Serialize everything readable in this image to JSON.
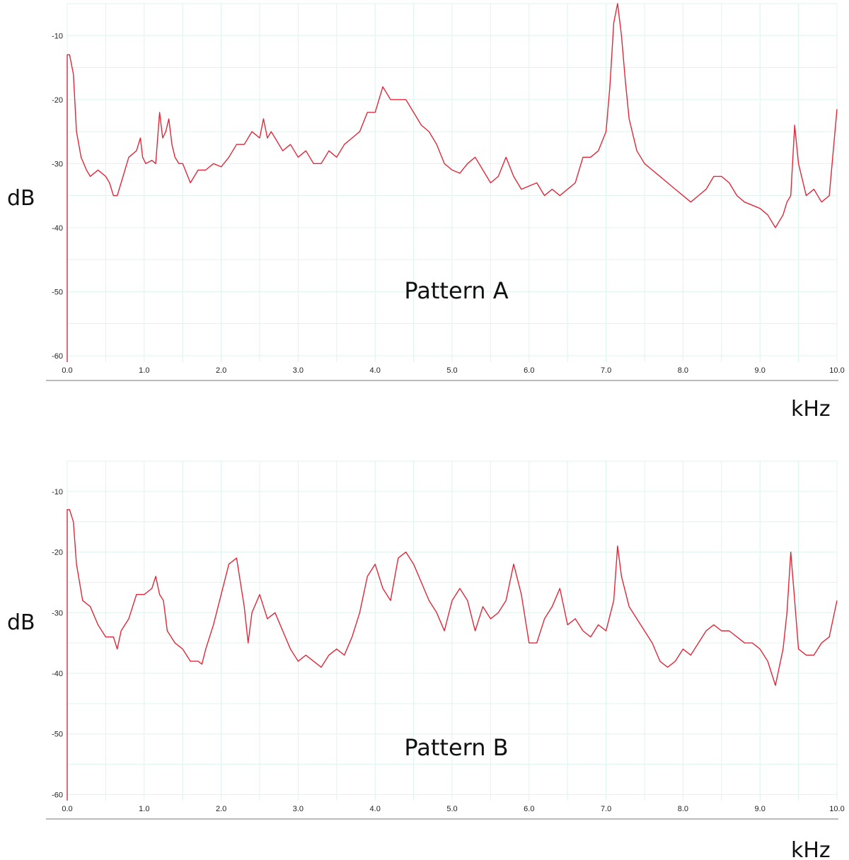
{
  "colors": {
    "line": "#e0283a",
    "grid": "#dff3ee",
    "tick_text": "#222222",
    "axis_line": "#bbbbbb"
  },
  "chart_data": [
    {
      "type": "line",
      "title": "Pattern A",
      "xlabel": "kHz",
      "ylabel": "dB",
      "xlim": [
        0,
        10
      ],
      "ylim": [
        -61,
        -5
      ],
      "grid": true,
      "x_ticks": [
        "0.0",
        "1.0",
        "2.0",
        "3.0",
        "4.0",
        "5.0",
        "6.0",
        "7.0",
        "8.0",
        "9.0",
        "10.0"
      ],
      "y_ticks": [
        "-10",
        "-20",
        "-30",
        "-40",
        "-50",
        "-60"
      ],
      "series": [
        {
          "name": "Pattern A",
          "x": [
            0.0,
            0.0,
            0.03,
            0.08,
            0.12,
            0.18,
            0.25,
            0.3,
            0.4,
            0.45,
            0.5,
            0.55,
            0.6,
            0.65,
            0.7,
            0.8,
            0.9,
            0.95,
            0.98,
            1.02,
            1.1,
            1.15,
            1.2,
            1.24,
            1.28,
            1.32,
            1.36,
            1.4,
            1.45,
            1.5,
            1.6,
            1.7,
            1.8,
            1.9,
            2.0,
            2.1,
            2.2,
            2.3,
            2.4,
            2.5,
            2.55,
            2.6,
            2.65,
            2.7,
            2.8,
            2.9,
            3.0,
            3.1,
            3.2,
            3.3,
            3.4,
            3.5,
            3.6,
            3.7,
            3.8,
            3.9,
            4.0,
            4.1,
            4.2,
            4.3,
            4.4,
            4.5,
            4.6,
            4.7,
            4.8,
            4.9,
            5.0,
            5.1,
            5.2,
            5.3,
            5.4,
            5.5,
            5.6,
            5.7,
            5.8,
            5.9,
            6.0,
            6.1,
            6.2,
            6.3,
            6.4,
            6.5,
            6.6,
            6.7,
            6.8,
            6.9,
            7.0,
            7.05,
            7.1,
            7.15,
            7.2,
            7.25,
            7.3,
            7.4,
            7.5,
            7.6,
            7.7,
            7.8,
            7.9,
            8.0,
            8.1,
            8.2,
            8.3,
            8.4,
            8.5,
            8.6,
            8.7,
            8.8,
            8.9,
            9.0,
            9.1,
            9.15,
            9.2,
            9.3,
            9.35,
            9.4,
            9.45,
            9.5,
            9.6,
            9.7,
            9.8,
            9.9,
            10.0
          ],
          "values": [
            -61,
            -13,
            -13,
            -16,
            -25,
            -29,
            -31,
            -32,
            -31,
            -31.5,
            -32,
            -33,
            -35,
            -35,
            -33,
            -29,
            -28,
            -26,
            -29,
            -30,
            -29.5,
            -30,
            -22,
            -26,
            -25,
            -23,
            -27,
            -29,
            -30,
            -30,
            -33,
            -31,
            -31,
            -30,
            -30.5,
            -29,
            -27,
            -27,
            -25,
            -26,
            -23,
            -26,
            -25,
            -26,
            -28,
            -27,
            -29,
            -28,
            -30,
            -30,
            -28,
            -29,
            -27,
            -26,
            -25,
            -22,
            -22,
            -18,
            -20,
            -20,
            -20,
            -22,
            -24,
            -25,
            -27,
            -30,
            -31,
            -31.5,
            -30,
            -29,
            -31,
            -33,
            -32,
            -29,
            -32,
            -34,
            -33.5,
            -33,
            -35,
            -34,
            -35,
            -34,
            -33,
            -29,
            -29,
            -28,
            -25,
            -18,
            -8,
            -5,
            -10,
            -17,
            -23,
            -28,
            -30,
            -31,
            -32,
            -33,
            -34,
            -35,
            -36,
            -35,
            -34,
            -32,
            -32,
            -33,
            -35,
            -36,
            -36.5,
            -37,
            -38,
            -39,
            -40,
            -38,
            -36,
            -35,
            -24,
            -30,
            -35,
            -34,
            -36,
            -35,
            -21.5
          ]
        }
      ]
    },
    {
      "type": "line",
      "title": "Pattern B",
      "xlabel": "kHz",
      "ylabel": "dB",
      "xlim": [
        0,
        10
      ],
      "ylim": [
        -61,
        -5
      ],
      "grid": true,
      "x_ticks": [
        "0.0",
        "1.0",
        "2.0",
        "3.0",
        "4.0",
        "5.0",
        "6.0",
        "7.0",
        "8.0",
        "9.0",
        "10.0"
      ],
      "y_ticks": [
        "-10",
        "-20",
        "-30",
        "-40",
        "-50",
        "-60"
      ],
      "series": [
        {
          "name": "Pattern B",
          "x": [
            0.0,
            0.0,
            0.03,
            0.08,
            0.12,
            0.2,
            0.3,
            0.4,
            0.5,
            0.6,
            0.65,
            0.7,
            0.8,
            0.9,
            1.0,
            1.1,
            1.15,
            1.2,
            1.25,
            1.3,
            1.35,
            1.4,
            1.5,
            1.6,
            1.7,
            1.75,
            1.8,
            1.9,
            2.0,
            2.1,
            2.2,
            2.3,
            2.35,
            2.4,
            2.5,
            2.6,
            2.7,
            2.8,
            2.9,
            3.0,
            3.1,
            3.2,
            3.3,
            3.4,
            3.5,
            3.6,
            3.7,
            3.8,
            3.9,
            4.0,
            4.1,
            4.2,
            4.3,
            4.4,
            4.5,
            4.6,
            4.7,
            4.8,
            4.9,
            5.0,
            5.1,
            5.2,
            5.3,
            5.4,
            5.5,
            5.6,
            5.7,
            5.8,
            5.9,
            6.0,
            6.1,
            6.2,
            6.3,
            6.4,
            6.5,
            6.6,
            6.7,
            6.8,
            6.9,
            7.0,
            7.1,
            7.15,
            7.2,
            7.3,
            7.4,
            7.5,
            7.6,
            7.7,
            7.8,
            7.9,
            8.0,
            8.1,
            8.2,
            8.3,
            8.4,
            8.5,
            8.6,
            8.7,
            8.8,
            8.9,
            9.0,
            9.1,
            9.2,
            9.3,
            9.35,
            9.4,
            9.45,
            9.5,
            9.6,
            9.7,
            9.8,
            9.9,
            10.0
          ],
          "values": [
            -61,
            -13,
            -13,
            -15,
            -22,
            -28,
            -29,
            -32,
            -34,
            -34,
            -36,
            -33,
            -31,
            -27,
            -27,
            -26,
            -24,
            -27,
            -28,
            -33,
            -34,
            -35,
            -36,
            -38,
            -38,
            -38.5,
            -36,
            -32,
            -27,
            -22,
            -21,
            -29,
            -35,
            -30,
            -27,
            -31,
            -30,
            -33,
            -36,
            -38,
            -37,
            -38,
            -39,
            -37,
            -36,
            -37,
            -34,
            -30,
            -24,
            -22,
            -26,
            -28,
            -21,
            -20,
            -22,
            -25,
            -28,
            -30,
            -33,
            -28,
            -26,
            -28,
            -33,
            -29,
            -31,
            -30,
            -28,
            -22,
            -27,
            -35,
            -35,
            -31,
            -29,
            -26,
            -32,
            -31,
            -33,
            -34,
            -32,
            -33,
            -28,
            -19,
            -24,
            -29,
            -31,
            -33,
            -35,
            -38,
            -39,
            -38,
            -36,
            -37,
            -35,
            -33,
            -32,
            -33,
            -33,
            -34,
            -35,
            -35,
            -36,
            -38,
            -42,
            -36,
            -30,
            -20,
            -28,
            -36,
            -37,
            -37,
            -35,
            -34,
            -28
          ]
        }
      ]
    }
  ]
}
